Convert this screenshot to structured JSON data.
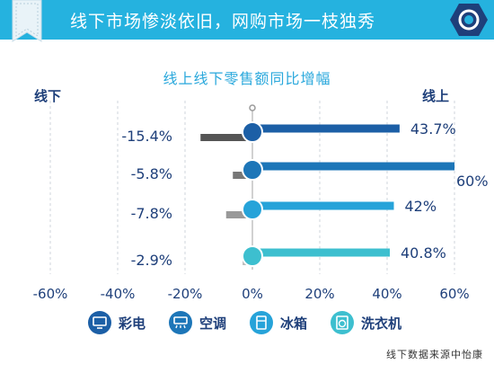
{
  "banner": {
    "title": "线下市场惨淡依旧，网购市场一枝独秀",
    "color": "#25b2df"
  },
  "labels": {
    "offline": "线下",
    "online": "线上"
  },
  "chart_data": {
    "type": "bar",
    "title": "线上线下零售额同比增幅",
    "categories": [
      "彩电",
      "空调",
      "冰箱",
      "洗衣机"
    ],
    "series": [
      {
        "name": "线上",
        "values": [
          43.7,
          60,
          42,
          40.8
        ],
        "colors": [
          "#1c5fa6",
          "#1d76b8",
          "#26a3d9",
          "#3dbfcf"
        ]
      },
      {
        "name": "线下",
        "values": [
          -15.4,
          -5.8,
          -7.8,
          -2.9
        ],
        "colors": [
          "#555555",
          "#777777",
          "#999999",
          "#bbbbbb"
        ]
      }
    ],
    "online_value_labels": [
      "43.7%",
      "60%",
      "42%",
      "40.8%"
    ],
    "offline_value_labels": [
      "-15.4%",
      "-5.8%",
      "-7.8%",
      "-2.9%"
    ],
    "x_ticks": [
      -60,
      -40,
      -20,
      0,
      20,
      40,
      60
    ],
    "x_tick_labels": [
      "-60%",
      "-40%",
      "-20%",
      "0%",
      "20%",
      "40%",
      "60%"
    ],
    "xlim": [
      -60,
      60
    ],
    "grid": true,
    "legend_placement": "bottom"
  },
  "legend": [
    {
      "label": "彩电",
      "icon": "tv-icon",
      "color": "#1c5fa6"
    },
    {
      "label": "空调",
      "icon": "air-conditioner-icon",
      "color": "#1d76b8"
    },
    {
      "label": "冰箱",
      "icon": "fridge-icon",
      "color": "#26a3d9"
    },
    {
      "label": "洗衣机",
      "icon": "washing-machine-icon",
      "color": "#3dbfcf"
    }
  ],
  "source": "线下数据来源中怡康"
}
